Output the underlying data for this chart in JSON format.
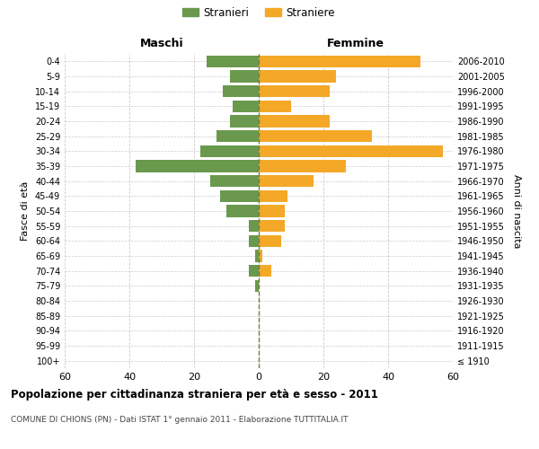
{
  "age_groups": [
    "100+",
    "95-99",
    "90-94",
    "85-89",
    "80-84",
    "75-79",
    "70-74",
    "65-69",
    "60-64",
    "55-59",
    "50-54",
    "45-49",
    "40-44",
    "35-39",
    "30-34",
    "25-29",
    "20-24",
    "15-19",
    "10-14",
    "5-9",
    "0-4"
  ],
  "birth_years": [
    "≤ 1910",
    "1911-1915",
    "1916-1920",
    "1921-1925",
    "1926-1930",
    "1931-1935",
    "1936-1940",
    "1941-1945",
    "1946-1950",
    "1951-1955",
    "1956-1960",
    "1961-1965",
    "1966-1970",
    "1971-1975",
    "1976-1980",
    "1981-1985",
    "1986-1990",
    "1991-1995",
    "1996-2000",
    "2001-2005",
    "2006-2010"
  ],
  "males": [
    0,
    0,
    0,
    0,
    0,
    1,
    3,
    1,
    3,
    3,
    10,
    12,
    15,
    38,
    18,
    13,
    9,
    8,
    11,
    9,
    16
  ],
  "females": [
    0,
    0,
    0,
    0,
    0,
    0,
    4,
    1,
    7,
    8,
    8,
    9,
    17,
    27,
    57,
    35,
    22,
    10,
    22,
    24,
    50
  ],
  "male_color": "#6a994e",
  "female_color": "#f4a828",
  "male_label": "Stranieri",
  "female_label": "Straniere",
  "title": "Popolazione per cittadinanza straniera per età e sesso - 2011",
  "subtitle": "COMUNE DI CHIONS (PN) - Dati ISTAT 1° gennaio 2011 - Elaborazione TUTTITALIA.IT",
  "xlabel_left": "Maschi",
  "xlabel_right": "Femmine",
  "ylabel_left": "Fasce di età",
  "ylabel_right": "Anni di nascita",
  "xlim": 60,
  "bg_color": "#ffffff",
  "grid_color": "#cccccc"
}
